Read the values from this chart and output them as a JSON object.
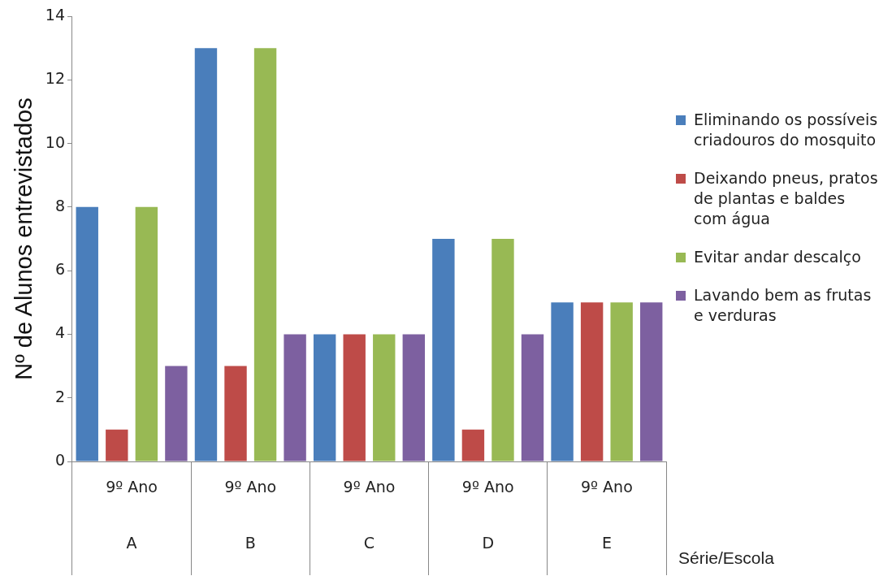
{
  "chart_data": {
    "type": "bar",
    "ylabel": "Nº de Alunos entrevistados",
    "xlabel": "Série/Escola",
    "categories": [
      "9º Ano\nA",
      "9º Ano\nB",
      "9º Ano\nC",
      "9º Ano\nD",
      "9º Ano\nE"
    ],
    "series": [
      {
        "name": "Eliminando os possíveis criadouros do mosquito",
        "color": "#4a7ebb",
        "values": [
          8,
          13,
          4,
          7,
          5
        ]
      },
      {
        "name": "Deixando pneus, pratos de plantas e baldes com água",
        "color": "#be4b48",
        "values": [
          1,
          3,
          4,
          1,
          5
        ]
      },
      {
        "name": "Evitar andar descalço",
        "color": "#98b954",
        "values": [
          8,
          13,
          4,
          7,
          5
        ]
      },
      {
        "name": "Lavando bem as frutas e verduras",
        "color": "#7d60a0",
        "values": [
          3,
          4,
          4,
          4,
          5
        ]
      }
    ],
    "ylim": [
      0,
      14
    ],
    "yticks": [
      0,
      2,
      4,
      6,
      8,
      10,
      12,
      14
    ],
    "grid": false,
    "legend": "right"
  }
}
